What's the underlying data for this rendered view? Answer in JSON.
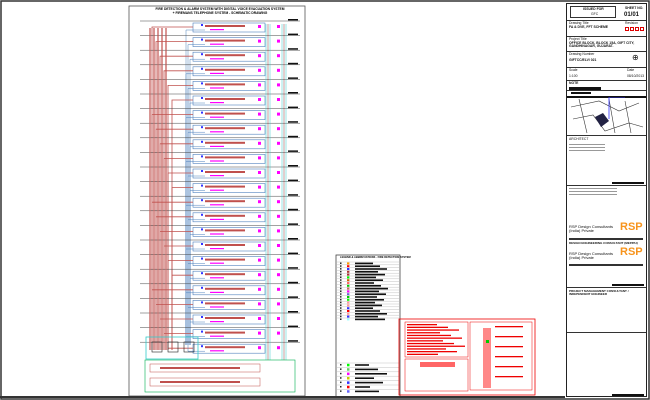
{
  "drawing": {
    "title_line1": "FIRE DETECTION & ALARM SYSTEM WITH DIGITAL VOICE EVACUATION SYSTEM",
    "title_line2": "+ FIREMANS TELEPHONE SYSTEM - SCHEMATIC DRAWING",
    "floor_count": 23,
    "colors": {
      "riser_red": "#c0504d",
      "riser_blue": "#4f81bd",
      "riser_brown": "#8b3a3a",
      "cyan": "#33cccc",
      "magenta": "#ff00ff",
      "green": "#00b050"
    }
  },
  "legend": {
    "title": "LEGEND & ABBREVIATIONS - FIRE DETECTION SYSTEM"
  },
  "title_block": {
    "issued_for_label": "ISSUED FOR",
    "issued_for_value": "GFC",
    "sheet_no_label": "SHEET NO.",
    "sheet_no_value": "01/01",
    "drawing_title_label": "Drawing Title",
    "drawing_title_value": "FA & DVE, FFT SCHEME",
    "revision_label": "Revision",
    "project_title_label": "Project Title",
    "project_title_value": "OFFICE BLOCK, BLOCK 15A, GIFT CITY, GANDHINAGAR, GUJARAT.",
    "drawing_number_label": "Drawing Number",
    "drawing_number_value": "GIFTCC/ELV/ 021",
    "scale_label": "Scale",
    "scale_value": "1:100",
    "date_label": "Date",
    "date_value": "08/10/2013",
    "note_label": "NOTE",
    "architect_label": "ARCHITECT",
    "consultant_name": "RSP Design Consultants (India) Private",
    "consultant_logo": "RSP",
    "design_engineering_label": "DESIGN ENGINEERING CONSULTANT (MEP/PH)",
    "peer_review_label": "PROJECT MANAGEMENT CONSULTANT / INDEPENDENT ENGINEER"
  }
}
